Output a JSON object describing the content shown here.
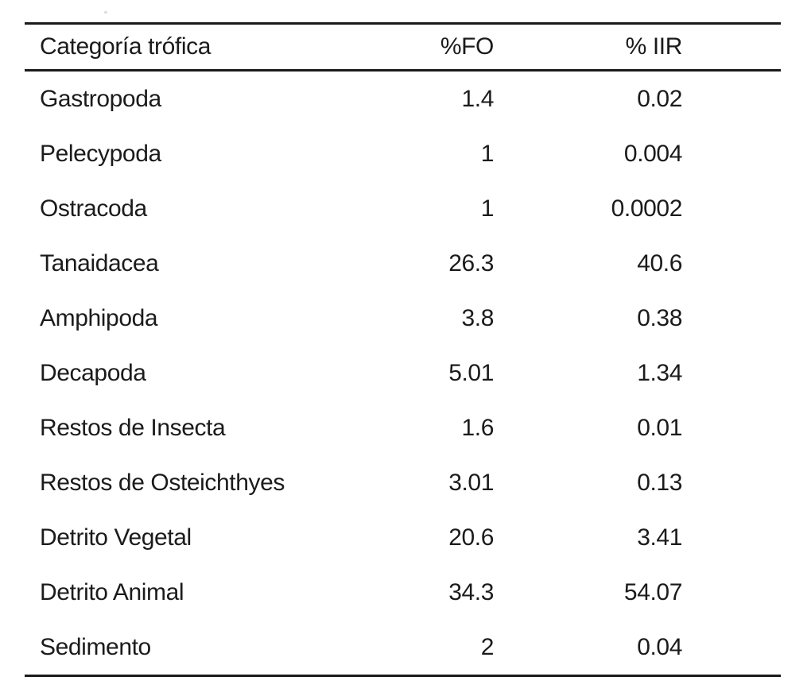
{
  "colors": {
    "background": "#ffffff",
    "text": "#1b1b1b",
    "rule": "#1b1b1b"
  },
  "table": {
    "headers": {
      "category": "Categoría trófica",
      "fo": "%FO",
      "iir": "% IIR"
    },
    "rows": [
      {
        "category": "Gastropoda",
        "fo": "1.4",
        "iir": "0.02"
      },
      {
        "category": "Pelecypoda",
        "fo": "1",
        "iir": "0.004"
      },
      {
        "category": "Ostracoda",
        "fo": "1",
        "iir": "0.0002"
      },
      {
        "category": "Tanaidacea",
        "fo": "26.3",
        "iir": "40.6"
      },
      {
        "category": "Amphipoda",
        "fo": "3.8",
        "iir": "0.38"
      },
      {
        "category": "Decapoda",
        "fo": "5.01",
        "iir": "1.34"
      },
      {
        "category": "Restos de Insecta",
        "fo": "1.6",
        "iir": "0.01"
      },
      {
        "category": "Restos de Osteichthyes",
        "fo": "3.01",
        "iir": "0.13"
      },
      {
        "category": "Detrito Vegetal",
        "fo": "20.6",
        "iir": "3.41"
      },
      {
        "category": "Detrito Animal",
        "fo": "34.3",
        "iir": "54.07"
      },
      {
        "category": "Sedimento",
        "fo": "2",
        "iir": "0.04"
      }
    ]
  }
}
